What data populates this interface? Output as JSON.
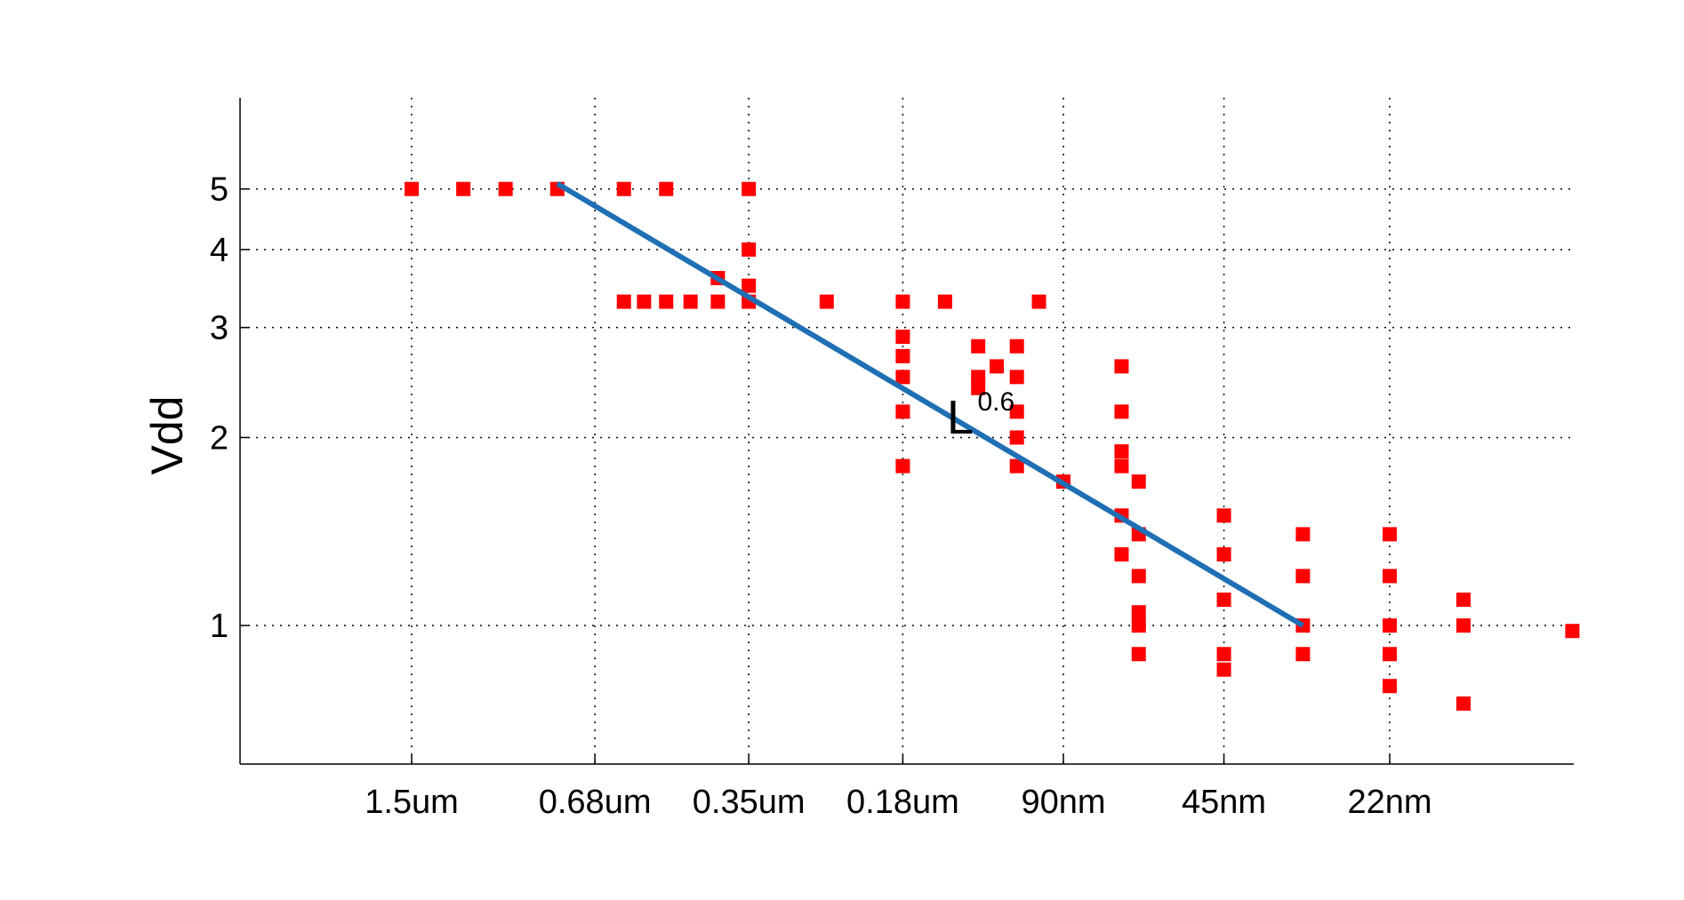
{
  "chart_data": {
    "type": "scatter",
    "title": "",
    "xlabel": "",
    "ylabel": "Vdd",
    "y_scale": "log",
    "ylim": [
      0.6,
      7
    ],
    "y_ticks": [
      1,
      2,
      3,
      4,
      5
    ],
    "y_tick_labels": [
      "1",
      "2",
      "3",
      "4",
      "5"
    ],
    "x_ticks": [
      "1.5um",
      "0.68um",
      "0.35um",
      "0.18um",
      "90nm",
      "45nm",
      "22nm"
    ],
    "grid": true,
    "legend": "none",
    "colors": {
      "points": "#ff0000",
      "fit_line": "#1f6fb4"
    },
    "points": [
      {
        "x": "1.5um",
        "y": 5.0
      },
      {
        "x": "1.2um",
        "y": 5.0
      },
      {
        "x": "1.0um",
        "y": 5.0
      },
      {
        "x": "0.8um",
        "y": 5.0
      },
      {
        "x": "0.6um",
        "y": 5.0
      },
      {
        "x": "0.5um",
        "y": 5.0
      },
      {
        "x": "0.35um",
        "y": 5.0
      },
      {
        "x": "0.35um",
        "y": 4.0
      },
      {
        "x": "0.35um",
        "y": 3.5
      },
      {
        "x": "0.35um",
        "y": 3.3
      },
      {
        "x": "0.6um",
        "y": 3.3
      },
      {
        "x": "0.55um",
        "y": 3.3
      },
      {
        "x": "0.5um",
        "y": 3.3
      },
      {
        "x": "0.45um",
        "y": 3.3
      },
      {
        "x": "0.4um",
        "y": 3.3
      },
      {
        "x": "0.4um",
        "y": 3.6
      },
      {
        "x": "0.25um",
        "y": 3.3
      },
      {
        "x": "0.18um",
        "y": 3.3
      },
      {
        "x": "0.15um",
        "y": 3.3
      },
      {
        "x": "0.1um",
        "y": 3.3
      },
      {
        "x": "0.18um",
        "y": 2.9
      },
      {
        "x": "0.18um",
        "y": 2.7
      },
      {
        "x": "0.18um",
        "y": 2.5
      },
      {
        "x": "0.18um",
        "y": 2.2
      },
      {
        "x": "0.18um",
        "y": 1.8
      },
      {
        "x": "0.13um",
        "y": 2.8
      },
      {
        "x": "0.13um",
        "y": 2.5
      },
      {
        "x": "0.13um",
        "y": 2.4
      },
      {
        "x": "0.12um",
        "y": 2.6
      },
      {
        "x": "0.11um",
        "y": 2.8
      },
      {
        "x": "0.11um",
        "y": 2.5
      },
      {
        "x": "0.11um",
        "y": 2.2
      },
      {
        "x": "0.11um",
        "y": 2.0
      },
      {
        "x": "0.11um",
        "y": 1.8
      },
      {
        "x": "0.09um",
        "y": 1.7
      },
      {
        "x": "0.07um",
        "y": 2.6
      },
      {
        "x": "0.07um",
        "y": 2.2
      },
      {
        "x": "0.07um",
        "y": 1.9
      },
      {
        "x": "0.07um",
        "y": 1.8
      },
      {
        "x": "0.07um",
        "y": 1.5
      },
      {
        "x": "0.07um",
        "y": 1.3
      },
      {
        "x": "65nm",
        "y": 1.7
      },
      {
        "x": "65nm",
        "y": 1.4
      },
      {
        "x": "65nm",
        "y": 1.2
      },
      {
        "x": "65nm",
        "y": 1.05
      },
      {
        "x": "65nm",
        "y": 1.0
      },
      {
        "x": "65nm",
        "y": 0.9
      },
      {
        "x": "45nm",
        "y": 1.5
      },
      {
        "x": "45nm",
        "y": 1.3
      },
      {
        "x": "45nm",
        "y": 1.1
      },
      {
        "x": "45nm",
        "y": 0.9
      },
      {
        "x": "45nm",
        "y": 0.85
      },
      {
        "x": "32nm",
        "y": 1.4
      },
      {
        "x": "32nm",
        "y": 1.2
      },
      {
        "x": "32nm",
        "y": 1.0
      },
      {
        "x": "32nm",
        "y": 0.9
      },
      {
        "x": "22nm",
        "y": 1.4
      },
      {
        "x": "22nm",
        "y": 1.2
      },
      {
        "x": "22nm",
        "y": 1.0
      },
      {
        "x": "22nm",
        "y": 0.9
      },
      {
        "x": "22nm",
        "y": 0.8
      },
      {
        "x": "16nm",
        "y": 1.1
      },
      {
        "x": "16nm",
        "y": 1.0
      },
      {
        "x": "16nm",
        "y": 0.75
      },
      {
        "x": "10nm",
        "y": 0.98
      }
    ],
    "fit_line": {
      "from": {
        "x": "0.8um",
        "y": 5.1
      },
      "to": {
        "x": "32nm",
        "y": 1.0
      }
    },
    "annotation": {
      "base": "L",
      "exponent": "0.6"
    }
  }
}
